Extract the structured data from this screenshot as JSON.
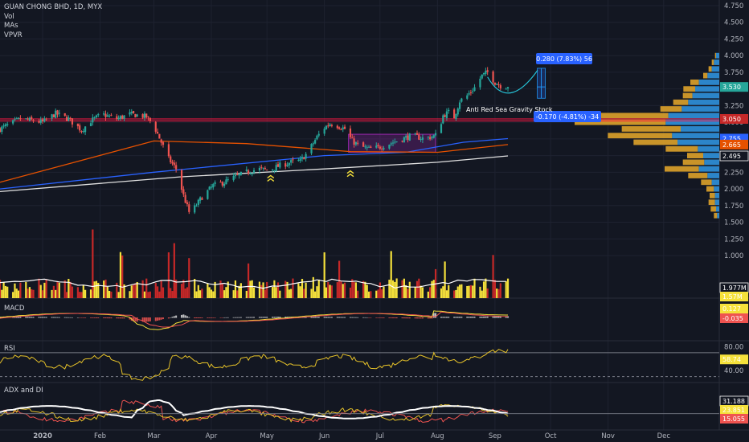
{
  "legend": {
    "title": "GUAN CHONG BHD, 1D, MYX",
    "studies": [
      "Vol",
      "MAs",
      "VPVR"
    ]
  },
  "panes": {
    "macd": "MACD",
    "rsi": "RSI",
    "adx": "ADX and DI"
  },
  "annotations": {
    "up_measure": "0.280 (7.83%) 56",
    "down_measure": "-0.170 (-4.81%) -34",
    "text_note": "Anti Red Sea Gravity Stock"
  },
  "colors": {
    "background": "#131722",
    "up": "#26a69a",
    "down": "#ef5350",
    "volume_up": "#f5e13b",
    "volume_down": "#c62828",
    "ma_short": "#2962ff",
    "ma_mid": "#e65100",
    "ma_long": "#e0e0e0",
    "vpvr_up": "#2f8fd8",
    "vpvr_down": "#d9a02a",
    "resistance": "#ff1744",
    "accent": "#2962ff"
  },
  "chart_data": [
    {
      "type": "candlestick",
      "title": "GUAN CHONG BHD, 1D, MYX",
      "x_ticks": [
        "2020",
        "Feb",
        "Mar",
        "Apr",
        "May",
        "Jun",
        "Jul",
        "Aug",
        "Sep",
        "Oct",
        "Nov",
        "Dec"
      ],
      "y_ticks": [
        "4.750",
        "4.500",
        "4.250",
        "4.000",
        "3.750",
        "3.500",
        "3.250",
        "3.000",
        "2.750",
        "2.500",
        "2.250",
        "2.000",
        "1.750",
        "1.500",
        "1.250",
        "1.000"
      ],
      "ylim": [
        1.0,
        4.75
      ],
      "x_domain": [
        "2019-12-09",
        "2020-12-31"
      ],
      "price_path": [
        [
          "2019-12-09",
          2.9
        ],
        [
          "2019-12-20",
          3.05
        ],
        [
          "2020-01-01",
          3.0
        ],
        [
          "2020-01-08",
          3.13
        ],
        [
          "2020-01-15",
          3.05
        ],
        [
          "2020-01-22",
          2.88
        ],
        [
          "2020-01-27",
          3.02
        ],
        [
          "2020-02-02",
          3.12
        ],
        [
          "2020-02-10",
          3.05
        ],
        [
          "2020-02-17",
          3.12
        ],
        [
          "2020-02-23",
          3.1
        ],
        [
          "2020-02-26",
          3.08
        ],
        [
          "2020-03-01",
          2.95
        ],
        [
          "2020-03-05",
          2.7
        ],
        [
          "2020-03-09",
          2.45
        ],
        [
          "2020-03-13",
          2.3
        ],
        [
          "2020-03-17",
          1.9
        ],
        [
          "2020-03-20",
          1.65
        ],
        [
          "2020-03-23",
          1.72
        ],
        [
          "2020-03-27",
          1.88
        ],
        [
          "2020-04-02",
          2.05
        ],
        [
          "2020-04-08",
          2.1
        ],
        [
          "2020-04-14",
          2.18
        ],
        [
          "2020-04-20",
          2.25
        ],
        [
          "2020-04-26",
          2.3
        ],
        [
          "2020-05-02",
          2.28
        ],
        [
          "2020-05-08",
          2.35
        ],
        [
          "2020-05-14",
          2.4
        ],
        [
          "2020-05-19",
          2.42
        ],
        [
          "2020-05-23",
          2.55
        ],
        [
          "2020-05-28",
          2.78
        ],
        [
          "2020-06-01",
          2.92
        ],
        [
          "2020-06-04",
          2.98
        ],
        [
          "2020-06-08",
          2.95
        ],
        [
          "2020-06-12",
          2.9
        ],
        [
          "2020-06-16",
          2.72
        ],
        [
          "2020-06-20",
          2.64
        ],
        [
          "2020-06-25",
          2.6
        ],
        [
          "2020-06-30",
          2.62
        ],
        [
          "2020-07-06",
          2.68
        ],
        [
          "2020-07-12",
          2.74
        ],
        [
          "2020-07-18",
          2.8
        ],
        [
          "2020-07-24",
          2.76
        ],
        [
          "2020-07-29",
          2.78
        ],
        [
          "2020-08-01",
          2.82
        ],
        [
          "2020-08-04",
          3.1
        ],
        [
          "2020-08-07",
          3.15
        ],
        [
          "2020-08-10",
          3.08
        ],
        [
          "2020-08-13",
          3.32
        ],
        [
          "2020-08-17",
          3.4
        ],
        [
          "2020-08-21",
          3.52
        ],
        [
          "2020-08-25",
          3.7
        ],
        [
          "2020-08-28",
          3.75
        ],
        [
          "2020-09-01",
          3.6
        ],
        [
          "2020-09-04",
          3.55
        ],
        [
          "2020-09-08",
          3.53
        ]
      ],
      "horizontal_lines": [
        3.05,
        3.02
      ],
      "price_tags": [
        {
          "value": 3.53,
          "label": "3.530",
          "color": "#26a69a"
        },
        {
          "value": 3.05,
          "label": "3.050",
          "color": "#c62828"
        },
        {
          "value": 2.755,
          "label": "2.755",
          "color": "#2962ff"
        },
        {
          "value": 2.665,
          "label": "2.665",
          "color": "#e65100"
        },
        {
          "value": 2.495,
          "label": "2.495",
          "color": "#131722"
        }
      ],
      "moving_averages": [
        {
          "color": "#2962ff",
          "points": [
            [
              "2019-12-09",
              2.0
            ],
            [
              "2020-03-01",
              2.25
            ],
            [
              "2020-06-01",
              2.5
            ],
            [
              "2020-07-15",
              2.55
            ],
            [
              "2020-08-15",
              2.7
            ],
            [
              "2020-09-08",
              2.755
            ]
          ]
        },
        {
          "color": "#e65100",
          "points": [
            [
              "2019-12-09",
              2.1
            ],
            [
              "2020-03-01",
              2.72
            ],
            [
              "2020-04-20",
              2.68
            ],
            [
              "2020-06-15",
              2.56
            ],
            [
              "2020-08-01",
              2.55
            ],
            [
              "2020-09-08",
              2.665
            ]
          ]
        },
        {
          "color": "#e0e0e0",
          "points": [
            [
              "2019-12-09",
              1.96
            ],
            [
              "2020-03-15",
              2.18
            ],
            [
              "2020-06-01",
              2.3
            ],
            [
              "2020-08-01",
              2.4
            ],
            [
              "2020-09-08",
              2.495
            ]
          ]
        }
      ],
      "range_box": {
        "from": "2020-06-14",
        "to": "2020-07-31",
        "low": 2.55,
        "high": 2.82
      },
      "vpvr": {
        "levels": [
          4.0,
          3.9,
          3.8,
          3.7,
          3.6,
          3.5,
          3.4,
          3.3,
          3.2,
          3.1,
          3.0,
          2.9,
          2.8,
          2.7,
          2.6,
          2.5,
          2.4,
          2.3,
          2.2,
          2.1,
          2.0,
          1.9,
          1.8,
          1.7,
          1.6
        ],
        "up": [
          6,
          10,
          14,
          22,
          38,
          45,
          50,
          58,
          70,
          95,
          100,
          72,
          88,
          78,
          40,
          30,
          28,
          38,
          22,
          14,
          10,
          8,
          8,
          6,
          4
        ],
        "down": [
          2,
          4,
          6,
          8,
          16,
          22,
          18,
          28,
          40,
          130,
          170,
          110,
          120,
          82,
          60,
          30,
          40,
          64,
          36,
          20,
          14,
          10,
          12,
          10,
          6
        ]
      }
    },
    {
      "type": "bar",
      "title": "Vol",
      "value_tags": [
        {
          "label": "1.977M",
          "color": "#131722"
        },
        {
          "label": "1.57M",
          "color": "#f5e13b"
        }
      ]
    },
    {
      "type": "line",
      "title": "MACD",
      "value_tags": [
        {
          "label": "0.127",
          "color": "#f5e13b"
        },
        {
          "label": "-0.035",
          "color": "#ef5350"
        }
      ]
    },
    {
      "type": "line",
      "title": "RSI",
      "y_ticks": [
        "80.00",
        "40.00"
      ],
      "ylim": [
        20,
        90
      ],
      "levels": [
        70,
        30
      ],
      "value_tags": [
        {
          "label": "58.74",
          "color": "#f5e13b"
        }
      ]
    },
    {
      "type": "line",
      "title": "ADX and DI",
      "value_tags": [
        {
          "label": "31.188",
          "color": "#131722"
        },
        {
          "label": "23.851",
          "color": "#f5e13b"
        },
        {
          "label": "15.055",
          "color": "#ef5350"
        }
      ]
    }
  ]
}
